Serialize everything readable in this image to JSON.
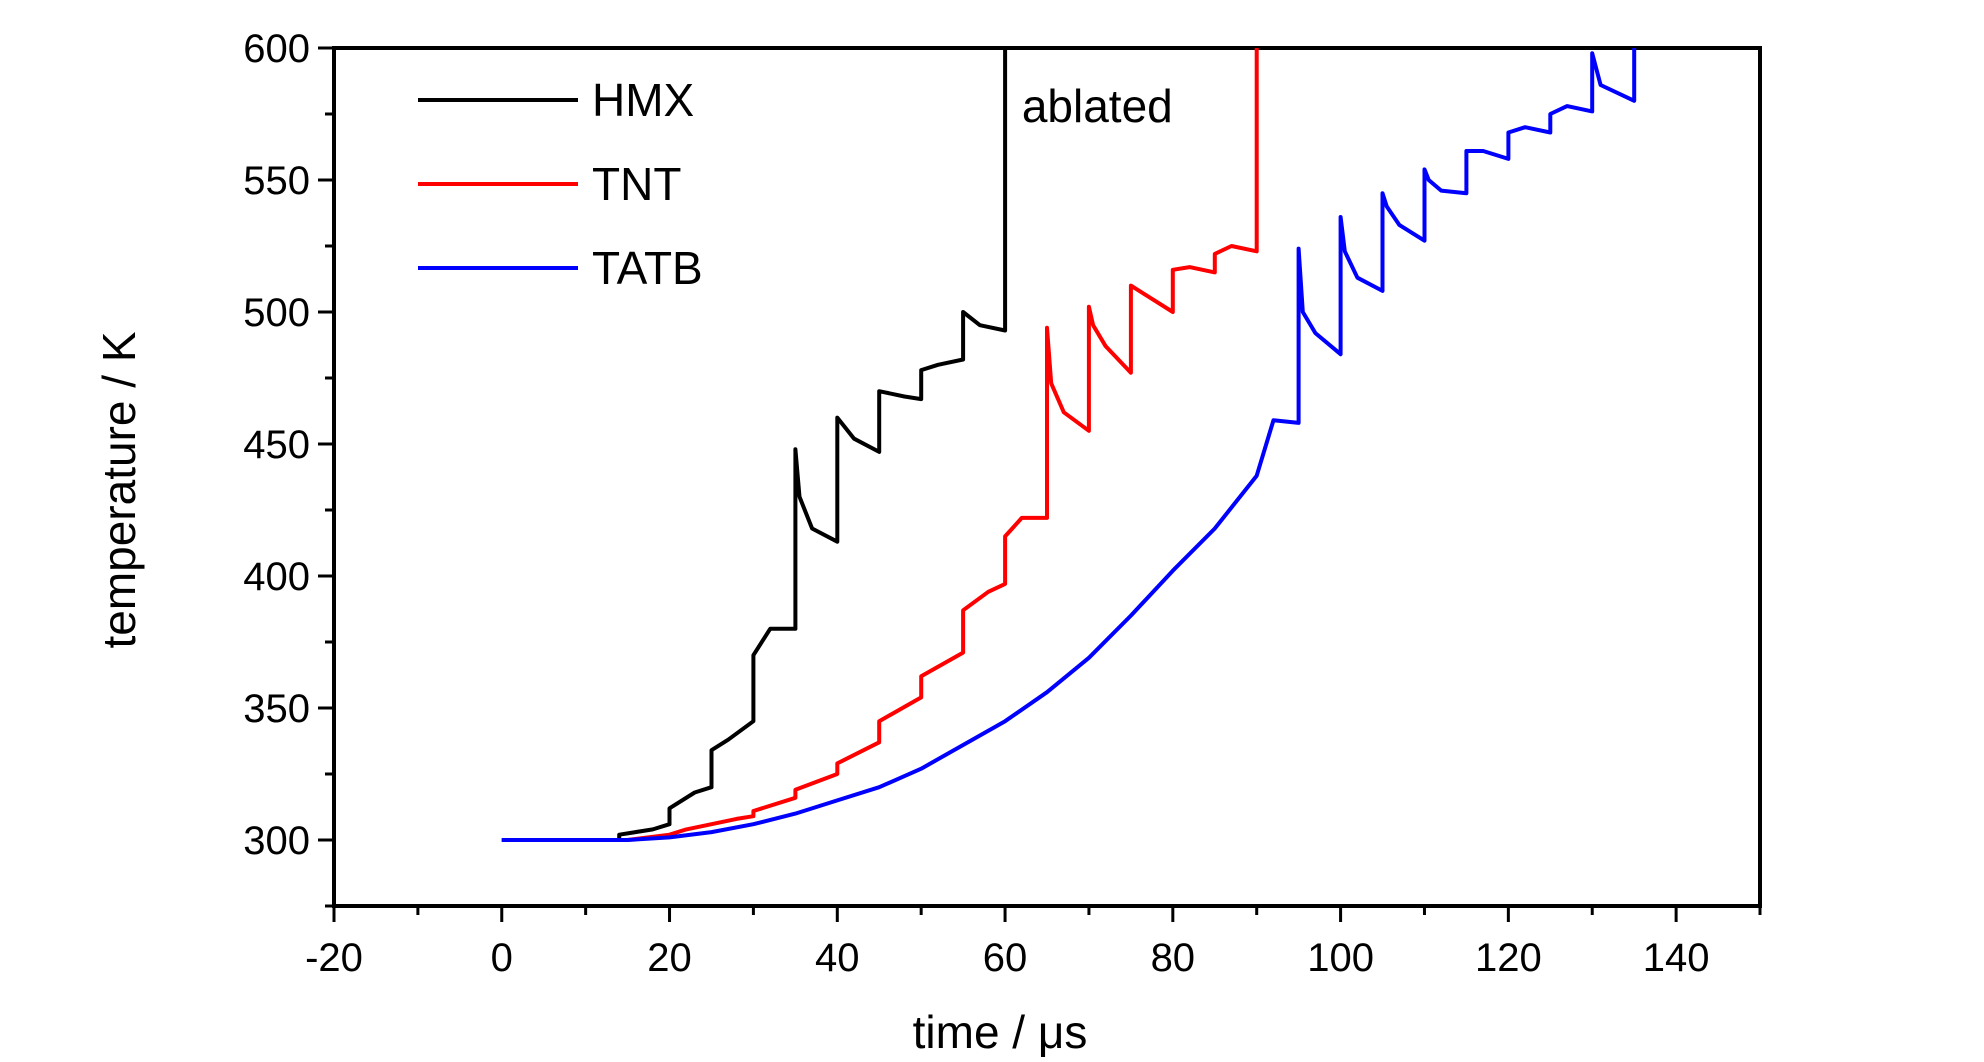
{
  "chart_data": {
    "type": "line",
    "title": "",
    "xlabel": "time / μs",
    "ylabel": "temperature / K",
    "xlim": [
      -20,
      150
    ],
    "ylim": [
      275,
      600
    ],
    "xticks": [
      -20,
      0,
      20,
      40,
      60,
      80,
      100,
      120,
      140
    ],
    "yticks": [
      300,
      350,
      400,
      450,
      500,
      550,
      600
    ],
    "grid": false,
    "legend_position": "top-left",
    "annotations": [
      {
        "text": "ablated",
        "x": 62,
        "y": 578
      }
    ],
    "series": [
      {
        "name": "HMX",
        "color": "#000000",
        "x": [
          0,
          14,
          14,
          18,
          20,
          20,
          23,
          25,
          25,
          27,
          30,
          30,
          32,
          35,
          35,
          35.5,
          37,
          40,
          40,
          42,
          45,
          45,
          48,
          50,
          50,
          52,
          55,
          55,
          57,
          60,
          60
        ],
        "y": [
          300,
          300,
          302,
          304,
          306,
          312,
          318,
          320,
          334,
          338,
          345,
          370,
          380,
          380,
          448,
          430,
          418,
          413,
          460,
          452,
          447,
          470,
          468,
          467,
          478,
          480,
          482,
          500,
          495,
          493,
          600
        ]
      },
      {
        "name": "TNT",
        "color": "#ff0000",
        "x": [
          0,
          15,
          20,
          22,
          25,
          28,
          30,
          30,
          35,
          35,
          40,
          40,
          45,
          45,
          50,
          50,
          55,
          55,
          58,
          60,
          60,
          62,
          65,
          65,
          65.5,
          67,
          70,
          70,
          70.5,
          72,
          75,
          75,
          77,
          80,
          80,
          82,
          85,
          85,
          87,
          90,
          90
        ],
        "y": [
          300,
          300,
          302,
          304,
          306,
          308,
          309,
          311,
          316,
          319,
          325,
          329,
          337,
          345,
          354,
          362,
          371,
          387,
          394,
          397,
          415,
          422,
          422,
          494,
          473,
          462,
          455,
          502,
          495,
          487,
          477,
          510,
          506,
          500,
          516,
          517,
          515,
          522,
          525,
          523,
          600
        ]
      },
      {
        "name": "TATB",
        "color": "#0000ff",
        "x": [
          0,
          15,
          20,
          25,
          30,
          35,
          40,
          45,
          50,
          55,
          60,
          65,
          70,
          75,
          80,
          85,
          90,
          92,
          95,
          95,
          95.5,
          97,
          100,
          100,
          100.5,
          102,
          105,
          105,
          105.5,
          107,
          110,
          110,
          110.5,
          112,
          115,
          115,
          117,
          120,
          120,
          122,
          125,
          125,
          127,
          130,
          130,
          131,
          135,
          135
        ],
        "y": [
          300,
          300,
          301,
          303,
          306,
          310,
          315,
          320,
          327,
          336,
          345,
          356,
          369,
          385,
          402,
          418,
          438,
          459,
          458,
          524,
          500,
          492,
          484,
          536,
          523,
          513,
          508,
          545,
          540,
          533,
          527,
          554,
          550,
          546,
          545,
          561,
          561,
          558,
          568,
          570,
          568,
          575,
          578,
          576,
          598,
          586,
          580,
          600
        ]
      }
    ]
  }
}
